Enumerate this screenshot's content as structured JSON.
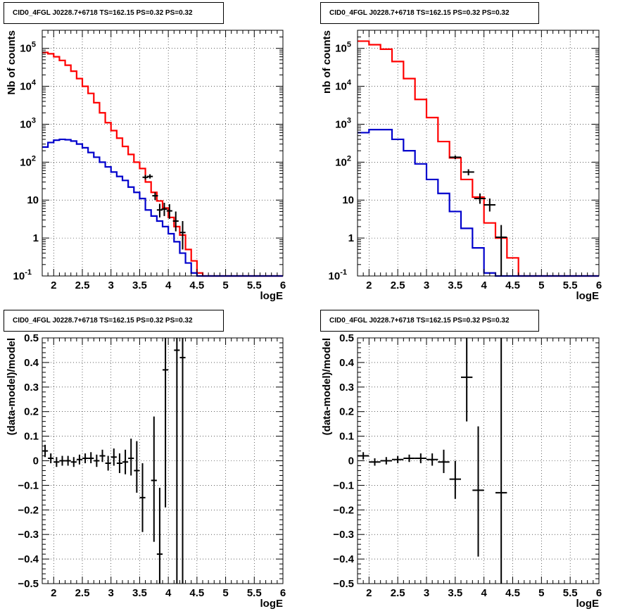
{
  "chart_data": [
    {
      "type": "step-histogram",
      "title": "CID0_4FGL J0228.7+6718 TS=162.15 PS=0.32 PS=0.32",
      "xlabel": "logE",
      "ylabel": "Nb of counts",
      "xlim": [
        1.8,
        6.0
      ],
      "ylim": [
        0.1,
        300000
      ],
      "y_scale": "log",
      "grid": true,
      "x_ticks": [
        "2",
        "2.5",
        "3",
        "3.5",
        "4",
        "4.5",
        "5",
        "5.5",
        "6"
      ],
      "y_ticks": [
        {
          "v": 0.1,
          "b": "10",
          "e": "-1"
        },
        {
          "v": 1,
          "b": "1",
          "e": ""
        },
        {
          "v": 10,
          "b": "10",
          "e": ""
        },
        {
          "v": 100,
          "b": "10",
          "e": "2"
        },
        {
          "v": 1000,
          "b": "10",
          "e": "3"
        },
        {
          "v": 10000,
          "b": "10",
          "e": "4"
        },
        {
          "v": 100000,
          "b": "10",
          "e": "5"
        }
      ],
      "bin_edges": [
        1.8,
        1.9,
        2.0,
        2.1,
        2.2,
        2.3,
        2.4,
        2.5,
        2.6,
        2.7,
        2.8,
        2.9,
        3.0,
        3.1,
        3.2,
        3.3,
        3.4,
        3.5,
        3.6,
        3.7,
        3.8,
        3.9,
        4.0,
        4.1,
        4.2,
        4.3,
        4.4,
        4.5,
        4.6,
        4.7,
        4.8,
        4.9,
        5.0,
        5.1,
        5.2,
        5.3,
        5.4,
        5.5,
        5.6,
        5.7,
        5.8,
        5.9,
        6.0
      ],
      "series": [
        {
          "color": "#ff0000",
          "values": [
            78000,
            72000,
            60000,
            48000,
            36000,
            25000,
            16000,
            10000,
            6500,
            3700,
            2000,
            1100,
            680,
            430,
            260,
            160,
            100,
            68,
            30,
            16,
            9.5,
            6.2,
            3.5,
            2.0,
            1.2,
            0.5,
            0.25,
            0.12,
            0.1,
            0.1,
            0.1,
            0.1,
            0.1,
            0.1,
            0.1,
            0.1,
            0.1,
            0.1,
            0.1,
            0.1,
            0.1,
            0.1
          ]
        },
        {
          "color": "#0000cc",
          "values": [
            250,
            330,
            380,
            400,
            390,
            360,
            300,
            240,
            180,
            135,
            100,
            75,
            55,
            42,
            33,
            22,
            16,
            11,
            5.5,
            3.8,
            2.8,
            2.0,
            1.3,
            0.8,
            0.4,
            0.22,
            0.12,
            0.1,
            0.1,
            0.1,
            0.1,
            0.1,
            0.1,
            0.1,
            0.1,
            0.1,
            0.1,
            0.1,
            0.1,
            0.1,
            0.1,
            0.1
          ]
        }
      ],
      "points": [
        {
          "x": 3.6,
          "y": 40,
          "xerr": 0.05,
          "ylo": 35,
          "yhi": 46
        },
        {
          "x": 3.68,
          "y": 42,
          "xerr": 0.05,
          "ylo": 37,
          "yhi": 48
        },
        {
          "x": 3.77,
          "y": 13,
          "xerr": 0.05,
          "ylo": 10,
          "yhi": 16
        },
        {
          "x": 3.85,
          "y": 5.5,
          "xerr": 0.05,
          "ylo": 3.5,
          "yhi": 8
        },
        {
          "x": 3.93,
          "y": 5.8,
          "xerr": 0.05,
          "ylo": 3.8,
          "yhi": 8.5
        },
        {
          "x": 4.02,
          "y": 5.2,
          "xerr": 0.05,
          "ylo": 3.2,
          "yhi": 7.8
        },
        {
          "x": 4.13,
          "y": 2.8,
          "xerr": 0.05,
          "ylo": 1.5,
          "yhi": 5
        },
        {
          "x": 4.25,
          "y": 1.4,
          "xerr": 0.05,
          "ylo": 0.5,
          "yhi": 2.8
        }
      ]
    },
    {
      "type": "step-histogram",
      "title": "CID0_4FGL J0228.7+6718 TS=162.15 PS=0.32 PS=0.32",
      "xlabel": "logE",
      "ylabel": "nb of counts",
      "xlim": [
        1.8,
        6.0
      ],
      "ylim": [
        0.1,
        300000
      ],
      "y_scale": "log",
      "grid": true,
      "x_ticks": [
        "2",
        "2.5",
        "3",
        "3.5",
        "4",
        "4.5",
        "5",
        "5.5",
        "6"
      ],
      "y_ticks": [
        {
          "v": 0.1,
          "b": "10",
          "e": "-1"
        },
        {
          "v": 1,
          "b": "1",
          "e": ""
        },
        {
          "v": 10,
          "b": "10",
          "e": ""
        },
        {
          "v": 100,
          "b": "10",
          "e": "2"
        },
        {
          "v": 1000,
          "b": "10",
          "e": "3"
        },
        {
          "v": 10000,
          "b": "10",
          "e": "4"
        },
        {
          "v": 100000,
          "b": "10",
          "e": "5"
        }
      ],
      "bin_edges": [
        1.8,
        2.0,
        2.2,
        2.4,
        2.6,
        2.8,
        3.0,
        3.2,
        3.4,
        3.6,
        3.8,
        4.0,
        4.2,
        4.4,
        4.6,
        4.8,
        5.0,
        5.2,
        5.4,
        5.6,
        5.8,
        6.0
      ],
      "series": [
        {
          "color": "#ff0000",
          "values": [
            155000,
            125000,
            95000,
            45000,
            16000,
            4500,
            1500,
            350,
            130,
            35,
            12,
            2.5,
            1.0,
            0.3,
            0.1,
            0.1,
            0.1,
            0.1,
            0.1,
            0.1,
            0.1
          ]
        },
        {
          "color": "#0000cc",
          "values": [
            600,
            720,
            720,
            400,
            200,
            90,
            35,
            15,
            5,
            1.8,
            0.55,
            0.12,
            0.1,
            0.1,
            0.1,
            0.1,
            0.1,
            0.1,
            0.1,
            0.1,
            0.1
          ]
        }
      ],
      "points": [
        {
          "x": 3.5,
          "y": 135,
          "xerr": 0.1,
          "ylo": 120,
          "yhi": 150
        },
        {
          "x": 3.73,
          "y": 55,
          "xerr": 0.1,
          "ylo": 45,
          "yhi": 65
        },
        {
          "x": 3.93,
          "y": 11,
          "xerr": 0.1,
          "ylo": 8,
          "yhi": 15
        },
        {
          "x": 4.1,
          "y": 7.5,
          "xerr": 0.1,
          "ylo": 5,
          "yhi": 11
        },
        {
          "x": 4.3,
          "y": 1.05,
          "xerr": 0.1,
          "ylo": 0.1,
          "yhi": 2.2
        }
      ]
    },
    {
      "type": "scatter",
      "title": "CID0_4FGL J0228.7+6718 TS=162.15 PS=0.32 PS=0.32",
      "xlabel": "logE",
      "ylabel": "(data-model)/model",
      "xlim": [
        1.8,
        6.0
      ],
      "ylim": [
        -0.5,
        0.5
      ],
      "y_scale": "linear",
      "grid": true,
      "x_ticks": [
        "2",
        "2.5",
        "3",
        "3.5",
        "4",
        "4.5",
        "5",
        "5.5",
        "6"
      ],
      "y_ticks": [
        {
          "v": -0.5,
          "b": "−0.5",
          "e": ""
        },
        {
          "v": -0.4,
          "b": "−0.4",
          "e": ""
        },
        {
          "v": -0.3,
          "b": "−0.3",
          "e": ""
        },
        {
          "v": -0.2,
          "b": "−0.2",
          "e": ""
        },
        {
          "v": -0.1,
          "b": "−0.1",
          "e": ""
        },
        {
          "v": 0,
          "b": "0",
          "e": ""
        },
        {
          "v": 0.1,
          "b": "0.1",
          "e": ""
        },
        {
          "v": 0.2,
          "b": "0.2",
          "e": ""
        },
        {
          "v": 0.3,
          "b": "0.3",
          "e": ""
        },
        {
          "v": 0.4,
          "b": "0.4",
          "e": ""
        },
        {
          "v": 0.5,
          "b": "0.5",
          "e": ""
        }
      ],
      "points": [
        {
          "x": 1.85,
          "y": 0.04,
          "xerr": 0.05,
          "ylo": 0.015,
          "yhi": 0.065
        },
        {
          "x": 1.95,
          "y": 0.01,
          "xerr": 0.05,
          "ylo": -0.01,
          "yhi": 0.03
        },
        {
          "x": 2.05,
          "y": -0.005,
          "xerr": 0.05,
          "ylo": -0.025,
          "yhi": 0.015
        },
        {
          "x": 2.15,
          "y": 0.0,
          "xerr": 0.05,
          "ylo": -0.02,
          "yhi": 0.02
        },
        {
          "x": 2.25,
          "y": 0.0,
          "xerr": 0.05,
          "ylo": -0.02,
          "yhi": 0.02
        },
        {
          "x": 2.35,
          "y": -0.005,
          "xerr": 0.05,
          "ylo": -0.025,
          "yhi": 0.015
        },
        {
          "x": 2.45,
          "y": 0.005,
          "xerr": 0.05,
          "ylo": -0.015,
          "yhi": 0.025
        },
        {
          "x": 2.55,
          "y": 0.01,
          "xerr": 0.05,
          "ylo": -0.01,
          "yhi": 0.03
        },
        {
          "x": 2.65,
          "y": 0.01,
          "xerr": 0.05,
          "ylo": -0.01,
          "yhi": 0.035
        },
        {
          "x": 2.75,
          "y": 0.0,
          "xerr": 0.05,
          "ylo": -0.025,
          "yhi": 0.025
        },
        {
          "x": 2.85,
          "y": 0.02,
          "xerr": 0.05,
          "ylo": -0.005,
          "yhi": 0.045
        },
        {
          "x": 2.95,
          "y": -0.01,
          "xerr": 0.05,
          "ylo": -0.04,
          "yhi": 0.02
        },
        {
          "x": 3.05,
          "y": 0.015,
          "xerr": 0.05,
          "ylo": -0.02,
          "yhi": 0.05
        },
        {
          "x": 3.15,
          "y": -0.01,
          "xerr": 0.05,
          "ylo": -0.05,
          "yhi": 0.03
        },
        {
          "x": 3.25,
          "y": -0.005,
          "xerr": 0.05,
          "ylo": -0.055,
          "yhi": 0.045
        },
        {
          "x": 3.35,
          "y": 0.01,
          "xerr": 0.05,
          "ylo": -0.06,
          "yhi": 0.09
        },
        {
          "x": 3.45,
          "y": -0.04,
          "xerr": 0.05,
          "ylo": -0.13,
          "yhi": 0.08
        },
        {
          "x": 3.55,
          "y": -0.15,
          "xerr": 0.05,
          "ylo": -0.29,
          "yhi": -0.01
        },
        {
          "x": 3.75,
          "y": -0.08,
          "xerr": 0.05,
          "ylo": -0.33,
          "yhi": 0.18
        },
        {
          "x": 3.85,
          "y": -0.38,
          "xerr": 0.05,
          "ylo": -0.5,
          "yhi": -0.11
        },
        {
          "x": 3.95,
          "y": 0.37,
          "xerr": 0.05,
          "ylo": -0.19,
          "yhi": 0.5
        },
        {
          "x": 4.15,
          "y": 0.45,
          "xerr": 0.05,
          "ylo": -0.5,
          "yhi": 0.5
        },
        {
          "x": 4.25,
          "y": 0.42,
          "xerr": 0.05,
          "ylo": -0.5,
          "yhi": 0.5
        }
      ]
    },
    {
      "type": "scatter",
      "title": "CID0_4FGL J0228.7+6718 TS=162.15 PS=0.32 PS=0.32",
      "xlabel": "logE",
      "ylabel": "(data-model)/model",
      "xlim": [
        1.8,
        6.0
      ],
      "ylim": [
        -0.5,
        0.5
      ],
      "y_scale": "linear",
      "grid": true,
      "x_ticks": [
        "2",
        "2.5",
        "3",
        "3.5",
        "4",
        "4.5",
        "5",
        "5.5",
        "6"
      ],
      "y_ticks": [
        {
          "v": -0.5,
          "b": "−0.5",
          "e": ""
        },
        {
          "v": -0.4,
          "b": "−0.4",
          "e": ""
        },
        {
          "v": -0.3,
          "b": "−0.3",
          "e": ""
        },
        {
          "v": -0.2,
          "b": "−0.2",
          "e": ""
        },
        {
          "v": -0.1,
          "b": "−0.1",
          "e": ""
        },
        {
          "v": 0,
          "b": "0",
          "e": ""
        },
        {
          "v": 0.1,
          "b": "0.1",
          "e": ""
        },
        {
          "v": 0.2,
          "b": "0.2",
          "e": ""
        },
        {
          "v": 0.3,
          "b": "0.3",
          "e": ""
        },
        {
          "v": 0.4,
          "b": "0.4",
          "e": ""
        },
        {
          "v": 0.5,
          "b": "0.5",
          "e": ""
        }
      ],
      "points": [
        {
          "x": 1.9,
          "y": 0.02,
          "xerr": 0.1,
          "ylo": 0.005,
          "yhi": 0.035
        },
        {
          "x": 2.1,
          "y": -0.005,
          "xerr": 0.1,
          "ylo": -0.02,
          "yhi": 0.01
        },
        {
          "x": 2.3,
          "y": 0.0,
          "xerr": 0.1,
          "ylo": -0.015,
          "yhi": 0.015
        },
        {
          "x": 2.5,
          "y": 0.005,
          "xerr": 0.1,
          "ylo": -0.01,
          "yhi": 0.02
        },
        {
          "x": 2.7,
          "y": 0.01,
          "xerr": 0.1,
          "ylo": -0.005,
          "yhi": 0.025
        },
        {
          "x": 2.9,
          "y": 0.01,
          "xerr": 0.1,
          "ylo": -0.01,
          "yhi": 0.03
        },
        {
          "x": 3.1,
          "y": 0.005,
          "xerr": 0.1,
          "ylo": -0.02,
          "yhi": 0.03
        },
        {
          "x": 3.3,
          "y": -0.005,
          "xerr": 0.1,
          "ylo": -0.05,
          "yhi": 0.045
        },
        {
          "x": 3.5,
          "y": -0.075,
          "xerr": 0.1,
          "ylo": -0.155,
          "yhi": 0.0
        },
        {
          "x": 3.7,
          "y": 0.34,
          "xerr": 0.1,
          "ylo": 0.16,
          "yhi": 0.5
        },
        {
          "x": 3.9,
          "y": -0.12,
          "xerr": 0.1,
          "ylo": -0.39,
          "yhi": 0.14
        },
        {
          "x": 4.3,
          "y": -0.13,
          "xerr": 0.1,
          "ylo": -0.5,
          "yhi": 0.5
        }
      ]
    }
  ]
}
